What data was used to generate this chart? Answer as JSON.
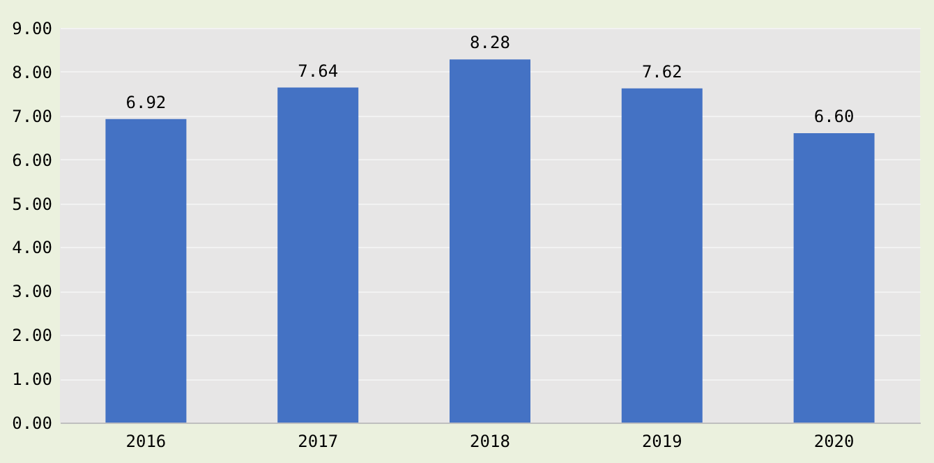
{
  "chart_data": {
    "type": "bar",
    "categories": [
      "2016",
      "2017",
      "2018",
      "2019",
      "2020"
    ],
    "values": [
      6.92,
      7.64,
      8.28,
      7.62,
      6.6
    ],
    "color": "#4472c4",
    "value_labels": [
      "6.92",
      "7.64",
      "8.28",
      "7.62",
      "6.60"
    ],
    "ylim": [
      0,
      9
    ],
    "yticks": [
      {
        "value": 0,
        "label": "0.00"
      },
      {
        "value": 1,
        "label": "1.00"
      },
      {
        "value": 2,
        "label": "2.00"
      },
      {
        "value": 3,
        "label": "3.00"
      },
      {
        "value": 4,
        "label": "4.00"
      },
      {
        "value": 5,
        "label": "5.00"
      },
      {
        "value": 6,
        "label": "6.00"
      },
      {
        "value": 7,
        "label": "7.00"
      },
      {
        "value": 8,
        "label": "8.00"
      },
      {
        "value": 9,
        "label": "9.00"
      }
    ],
    "grid": "y"
  }
}
